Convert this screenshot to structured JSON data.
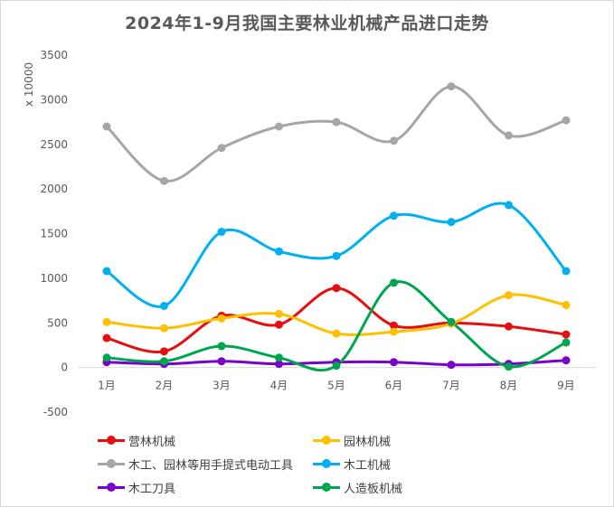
{
  "chart_data": {
    "type": "line",
    "title": "2024年1-9月我国主要林业机械产品进口走势",
    "ylabel": "x 10000",
    "xlabel": "",
    "categories": [
      "1月",
      "2月",
      "3月",
      "4月",
      "5月",
      "6月",
      "7月",
      "8月",
      "9月"
    ],
    "ylim": [
      -500,
      3500
    ],
    "yticks": [
      -500,
      0,
      500,
      1000,
      1500,
      2000,
      2500,
      3000,
      3500
    ],
    "grid": false,
    "smooth": true,
    "legend_position": "bottom",
    "series": [
      {
        "name": "营林机械",
        "color": "#e50f0f",
        "values": [
          330,
          180,
          580,
          480,
          890,
          470,
          500,
          460,
          370
        ]
      },
      {
        "name": "园林机械",
        "color": "#ffc000",
        "values": [
          510,
          440,
          550,
          600,
          380,
          400,
          490,
          810,
          700
        ]
      },
      {
        "name": "木工、园林等用手提式电动工具",
        "color": "#a6a6a6",
        "values": [
          2700,
          2090,
          2460,
          2700,
          2750,
          2540,
          3150,
          2600,
          2770
        ]
      },
      {
        "name": "木工机械",
        "color": "#00b0f0",
        "values": [
          1080,
          690,
          1520,
          1300,
          1250,
          1700,
          1630,
          1820,
          1080
        ]
      },
      {
        "name": "木工刀具",
        "color": "#7a00cc",
        "values": [
          60,
          40,
          70,
          40,
          60,
          60,
          30,
          40,
          80
        ]
      },
      {
        "name": "人造板机械",
        "color": "#00a550",
        "values": [
          110,
          70,
          240,
          110,
          20,
          950,
          510,
          10,
          280
        ]
      }
    ]
  }
}
